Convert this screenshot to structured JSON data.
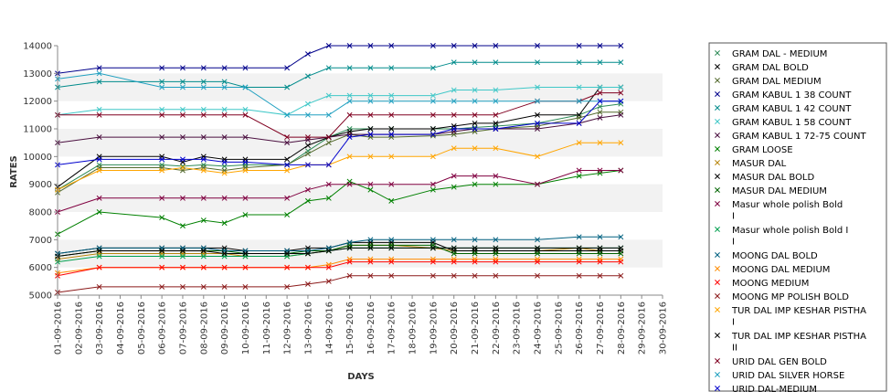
{
  "chart_data": {
    "type": "line",
    "xlabel": "DAYS",
    "ylabel": "RATES",
    "ylim": [
      5000,
      14000
    ],
    "y_ticks": [
      5000,
      6000,
      7000,
      8000,
      9000,
      10000,
      11000,
      12000,
      13000,
      14000
    ],
    "grid": "alternating horizontal bands",
    "legend_position": "right",
    "x_labels": [
      "01-09-2016",
      "02-09-2016",
      "03-09-2016",
      "04-09-2016",
      "05-09-2016",
      "06-09-2016",
      "07-09-2016",
      "08-09-2016",
      "09-09-2016",
      "10-09-2016",
      "11-09-2016",
      "12-09-2016",
      "13-09-2016",
      "14-09-2016",
      "15-09-2016",
      "16-09-2016",
      "17-09-2016",
      "18-09-2016",
      "19-09-2016",
      "20-09-2016",
      "21-09-2016",
      "22-09-2016",
      "23-09-2016",
      "24-09-2016",
      "25-09-2016",
      "26-09-2016",
      "27-09-2016",
      "28-09-2016",
      "29-09-2016",
      "30-09-2016"
    ],
    "dates": [
      "01-09-2016",
      "03-09-2016",
      "06-09-2016",
      "07-09-2016",
      "08-09-2016",
      "09-09-2016",
      "10-09-2016",
      "12-09-2016",
      "13-09-2016",
      "14-09-2016",
      "15-09-2016",
      "16-09-2016",
      "17-09-2016",
      "19-09-2016",
      "20-09-2016",
      "21-09-2016",
      "22-09-2016",
      "24-09-2016",
      "26-09-2016",
      "27-09-2016",
      "28-09-2016"
    ],
    "series": [
      {
        "name": "GRAM DAL - MEDIUM",
        "color": "#2e8b57",
        "values": [
          8800,
          9700,
          9700,
          9650,
          9700,
          9650,
          9700,
          9700,
          10200,
          10700,
          11000,
          11000,
          11000,
          11000,
          11000,
          11050,
          11100,
          11200,
          11500,
          11800,
          11900
        ]
      },
      {
        "name": "GRAM DAL BOLD",
        "color": "#000000",
        "values": [
          8900,
          10000,
          10000,
          9800,
          10000,
          9900,
          9900,
          9900,
          10400,
          10700,
          10900,
          11000,
          11000,
          11000,
          11100,
          11200,
          11200,
          11500,
          11500,
          12500,
          12500
        ]
      },
      {
        "name": "GRAM DAL MEDIUM",
        "color": "#556b2f",
        "values": [
          8700,
          9600,
          9600,
          9500,
          9600,
          9500,
          9600,
          9700,
          10100,
          10500,
          10800,
          10700,
          10700,
          10750,
          10800,
          10900,
          11000,
          11100,
          11400,
          11600,
          11600
        ]
      },
      {
        "name": "GRAM KABUL 1 38 COUNT",
        "color": "#00008b",
        "values": [
          13000,
          13200,
          13200,
          13200,
          13200,
          13200,
          13200,
          13200,
          13700,
          14000,
          14000,
          14000,
          14000,
          14000,
          14000,
          14000,
          14000,
          14000,
          14000,
          14000,
          14000
        ]
      },
      {
        "name": "GRAM KABUL 1 42 COUNT",
        "color": "#008b8b",
        "values": [
          12500,
          12700,
          12700,
          12700,
          12700,
          12700,
          12500,
          12500,
          12900,
          13200,
          13200,
          13200,
          13200,
          13200,
          13400,
          13400,
          13400,
          13400,
          13400,
          13400,
          13400
        ]
      },
      {
        "name": "GRAM KABUL 1 58 COUNT",
        "color": "#40c8c8",
        "values": [
          11500,
          11700,
          11700,
          11700,
          11700,
          11700,
          11700,
          11500,
          11900,
          12200,
          12200,
          12200,
          12200,
          12200,
          12400,
          12400,
          12400,
          12500,
          12500,
          12500,
          12500
        ]
      },
      {
        "name": "GRAM KABUL 1 72-75 COUNT",
        "color": "#4b1040",
        "values": [
          10500,
          10700,
          10700,
          10700,
          10700,
          10700,
          10700,
          10500,
          10600,
          10700,
          10800,
          10800,
          10800,
          10800,
          10900,
          11000,
          11000,
          11000,
          11200,
          11400,
          11500
        ]
      },
      {
        "name": "GRAM LOOSE",
        "color": "#008000",
        "values": [
          7200,
          8000,
          7800,
          7500,
          7700,
          7600,
          7900,
          7900,
          8400,
          8500,
          9100,
          8800,
          8400,
          8800,
          8900,
          9000,
          9000,
          9000,
          9300,
          9400,
          9500
        ]
      },
      {
        "name": "MASUR DAL",
        "color": "#b8860b",
        "values": [
          6300,
          6500,
          6500,
          6500,
          6500,
          6500,
          6400,
          6400,
          6500,
          6600,
          6800,
          6800,
          6800,
          6700,
          6600,
          6600,
          6600,
          6600,
          6700,
          6600,
          6600
        ]
      },
      {
        "name": "MASUR DAL BOLD",
        "color": "#000000",
        "values": [
          6500,
          6700,
          6700,
          6700,
          6700,
          6700,
          6600,
          6600,
          6700,
          6700,
          6900,
          6900,
          6900,
          6900,
          6600,
          6600,
          6600,
          6600,
          6600,
          6600,
          6600
        ]
      },
      {
        "name": "MASUR DAL MEDIUM",
        "color": "#006400",
        "values": [
          6400,
          6600,
          6600,
          6600,
          6600,
          6600,
          6500,
          6500,
          6600,
          6600,
          6800,
          6800,
          6800,
          6800,
          6500,
          6500,
          6500,
          6500,
          6500,
          6500,
          6500
        ]
      },
      {
        "name": "Masur whole polish Bold I",
        "color": "#800040",
        "values": [
          8000,
          8500,
          8500,
          8500,
          8500,
          8500,
          8500,
          8500,
          8800,
          9000,
          9000,
          9000,
          9000,
          9000,
          9300,
          9300,
          9300,
          9000,
          9500,
          9500,
          9500
        ]
      },
      {
        "name": "Masur whole polish Bold I I",
        "color": "#00a050",
        "values": [
          6200,
          6400,
          6400,
          6400,
          6400,
          6400,
          6400,
          6400,
          6500,
          6600,
          6700,
          6700,
          6700,
          6700,
          6700,
          6700,
          6700,
          6700,
          6700,
          6700,
          6700
        ]
      },
      {
        "name": "MOONG DAL BOLD",
        "color": "#006080",
        "values": [
          6500,
          6700,
          6700,
          6700,
          6700,
          6600,
          6600,
          6600,
          6600,
          6700,
          6900,
          7000,
          7000,
          7000,
          7000,
          7000,
          7000,
          7000,
          7100,
          7100,
          7100
        ]
      },
      {
        "name": "MOONG DAL MEDIUM",
        "color": "#ff8c00",
        "values": [
          5800,
          6000,
          6000,
          6000,
          6000,
          6000,
          6000,
          6000,
          6000,
          6100,
          6300,
          6300,
          6300,
          6300,
          6300,
          6300,
          6300,
          6300,
          6300,
          6300,
          6300
        ]
      },
      {
        "name": "MOONG MEDIUM",
        "color": "#ff0000",
        "values": [
          5700,
          6000,
          6000,
          6000,
          6000,
          6000,
          6000,
          6000,
          6000,
          6000,
          6200,
          6200,
          6200,
          6200,
          6200,
          6200,
          6200,
          6200,
          6200,
          6200,
          6200
        ]
      },
      {
        "name": "MOONG MP POLISH BOLD",
        "color": "#8b1a1a",
        "values": [
          5100,
          5300,
          5300,
          5300,
          5300,
          5300,
          5300,
          5300,
          5400,
          5500,
          5700,
          5700,
          5700,
          5700,
          5700,
          5700,
          5700,
          5700,
          5700,
          5700,
          5700
        ]
      },
      {
        "name": "TUR DAL IMP KESHAR PISTHA I",
        "color": "#ffa500",
        "values": [
          8800,
          9500,
          9500,
          9600,
          9500,
          9400,
          9500,
          9500,
          9700,
          9700,
          10000,
          10000,
          10000,
          10000,
          10300,
          10300,
          10300,
          10000,
          10500,
          10500,
          10500
        ]
      },
      {
        "name": "TUR DAL IMP KESHAR PISTHA II",
        "color": "#000000",
        "values": [
          6400,
          6600,
          6600,
          6600,
          6600,
          6500,
          6500,
          6500,
          6500,
          6600,
          6700,
          6700,
          6700,
          6700,
          6700,
          6700,
          6700,
          6700,
          6700,
          6700,
          6700
        ]
      },
      {
        "name": "URID DAL GEN BOLD",
        "color": "#800020",
        "values": [
          11500,
          11500,
          11500,
          11500,
          11500,
          11500,
          11500,
          10700,
          10700,
          10700,
          11500,
          11500,
          11500,
          11500,
          11500,
          11500,
          11500,
          12000,
          12000,
          12300,
          12300
        ]
      },
      {
        "name": "URID DAL SILVER HORSE",
        "color": "#20a0c0",
        "values": [
          12800,
          13000,
          12500,
          12500,
          12500,
          12500,
          12500,
          11500,
          11500,
          11500,
          12000,
          12000,
          12000,
          12000,
          12000,
          12000,
          12000,
          12000,
          12000,
          12000,
          12000
        ]
      },
      {
        "name": "URID DAL-MEDIUM",
        "color": "#0000cd",
        "values": [
          9700,
          9900,
          9900,
          9900,
          9900,
          9800,
          9800,
          9700,
          9700,
          9700,
          10700,
          10800,
          10800,
          10800,
          11000,
          11000,
          11000,
          11200,
          11200,
          12000,
          12000
        ]
      }
    ]
  }
}
